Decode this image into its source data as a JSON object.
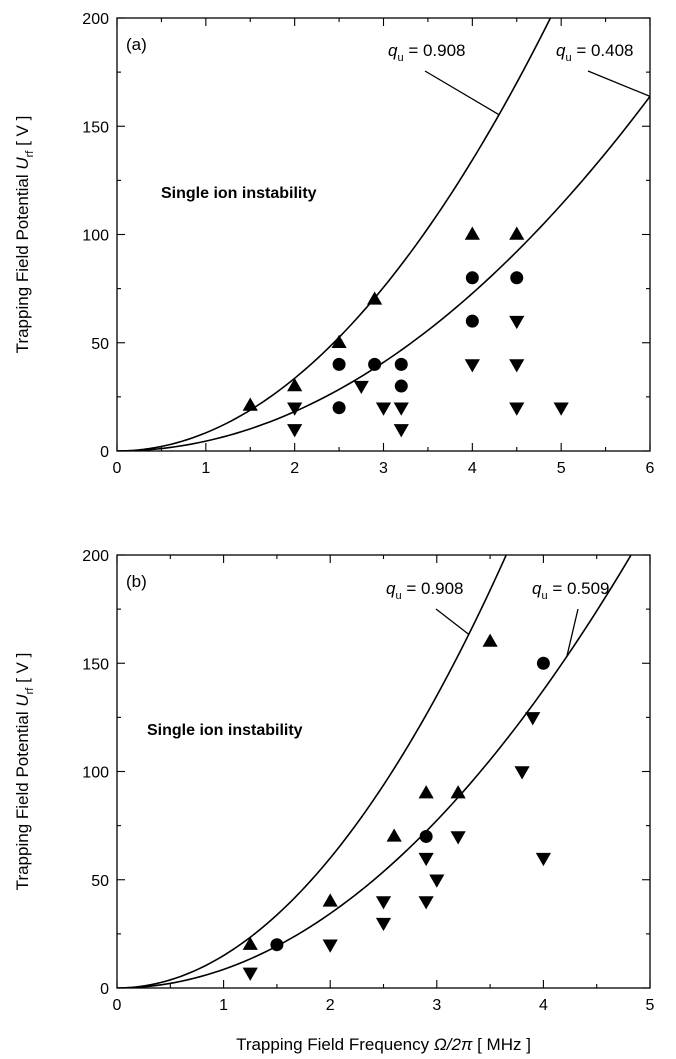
{
  "chart_data": [
    {
      "type": "scatter",
      "panel_label": "(a)",
      "xlim": [
        0,
        6
      ],
      "ylim": [
        0,
        200
      ],
      "xticks": [
        0,
        1,
        2,
        3,
        4,
        5,
        6
      ],
      "yticks": [
        0,
        50,
        100,
        150,
        200
      ],
      "ylabel": {
        "main": "Trapping Field Potential ",
        "var": "U",
        "sub": "rf",
        "unit": "  [ V ]"
      },
      "region_label": "Single ion instability",
      "curves": [
        {
          "q_prefix": "q",
          "q_sub": "u",
          "q_value": " = 0.908",
          "coefficient": 8.4
        },
        {
          "q_prefix": "q",
          "q_sub": "u",
          "q_value": " = 0.408",
          "coefficient": 4.55
        }
      ],
      "series": [
        {
          "marker": "triangle-up",
          "x": [
            1.5,
            2.0,
            2.5,
            2.9,
            4.0,
            4.5
          ],
          "y": [
            21,
            30,
            50,
            70,
            100,
            100
          ]
        },
        {
          "marker": "circle",
          "x": [
            2.5,
            2.5,
            2.9,
            3.2,
            3.2,
            4.0,
            4.0,
            4.5
          ],
          "y": [
            40,
            20,
            40,
            40,
            30,
            80,
            60,
            80
          ]
        },
        {
          "marker": "triangle-down",
          "x": [
            2.0,
            2.0,
            2.75,
            3.0,
            3.2,
            3.2,
            4.0,
            4.5,
            4.5,
            4.5,
            5.0
          ],
          "y": [
            20,
            10,
            30,
            20,
            20,
            10,
            40,
            60,
            40,
            20,
            20
          ]
        }
      ]
    },
    {
      "type": "scatter",
      "panel_label": "(b)",
      "xlim": [
        0,
        5
      ],
      "ylim": [
        0,
        200
      ],
      "xticks": [
        0,
        1,
        2,
        3,
        4,
        5
      ],
      "yticks": [
        0,
        50,
        100,
        150,
        200
      ],
      "xlabel": {
        "main": "Trapping Field Frequency ",
        "var": "Ω/2π",
        "unit": "  [ MHz ]"
      },
      "ylabel": {
        "main": "Trapping Field Potential ",
        "var": "U",
        "sub": "rf",
        "unit": "  [ V ]"
      },
      "region_label": "Single ion instability",
      "curves": [
        {
          "q_prefix": "q",
          "q_sub": "u",
          "q_value": " = 0.908",
          "coefficient": 15.0
        },
        {
          "q_prefix": "q",
          "q_sub": "u",
          "q_value": " = 0.509",
          "coefficient": 8.6
        }
      ],
      "series": [
        {
          "marker": "triangle-up",
          "x": [
            1.25,
            2.0,
            2.6,
            2.9,
            3.2,
            3.5
          ],
          "y": [
            20,
            40,
            70,
            90,
            90,
            160
          ]
        },
        {
          "marker": "circle",
          "x": [
            1.5,
            2.9,
            4.0
          ],
          "y": [
            20,
            70,
            150
          ]
        },
        {
          "marker": "triangle-down",
          "x": [
            1.25,
            2.0,
            2.5,
            2.5,
            2.9,
            2.9,
            3.0,
            3.2,
            3.8,
            3.9,
            4.0
          ],
          "y": [
            7,
            20,
            40,
            30,
            60,
            40,
            50,
            70,
            100,
            125,
            60
          ]
        }
      ]
    }
  ]
}
